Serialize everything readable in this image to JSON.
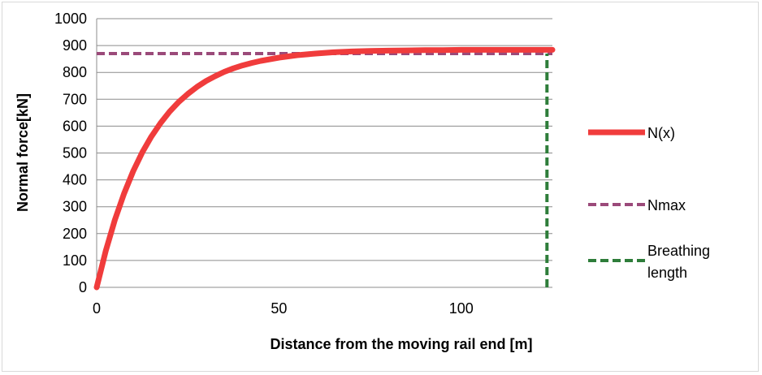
{
  "chart_data": {
    "type": "line",
    "title": "",
    "xlabel": "Distance from the moving rail end  [m]",
    "ylabel": "Normal force[kN]",
    "xlim": [
      0,
      125
    ],
    "ylim": [
      0,
      1000
    ],
    "xticks": [
      0,
      50,
      100
    ],
    "yticks": [
      0,
      100,
      200,
      300,
      400,
      500,
      600,
      700,
      800,
      900,
      1000
    ],
    "grid": "horizontal",
    "legend_position": "right",
    "series": [
      {
        "name": "N(x)",
        "color": "#f03c3c",
        "style": "solid",
        "x": [
          0,
          2.5,
          5,
          7.5,
          10,
          12.5,
          15,
          17.5,
          20,
          22.5,
          25,
          27.5,
          30,
          32.5,
          35,
          37.5,
          40,
          42.5,
          45,
          47.5,
          50,
          55,
          60,
          65,
          70,
          75,
          80,
          85,
          90,
          95,
          100,
          105,
          110,
          115,
          120,
          125
        ],
        "y": [
          0,
          136,
          251,
          349,
          432,
          502,
          561,
          611,
          654,
          690,
          720,
          746,
          768,
          786,
          802,
          815,
          826,
          835,
          843,
          849,
          855,
          864,
          870,
          875,
          878,
          880,
          881,
          882,
          883,
          883,
          884,
          884,
          884,
          884,
          884,
          884
        ]
      },
      {
        "name": "Nmax",
        "color": "#9b4a7a",
        "style": "dashed",
        "x": [
          0,
          125
        ],
        "y": [
          870,
          870
        ]
      },
      {
        "name": "Breathing length",
        "color": "#2e7d3a",
        "style": "dashed",
        "x": [
          123.5,
          123.5
        ],
        "y": [
          0,
          870
        ]
      }
    ]
  },
  "legend": {
    "items": [
      {
        "label": "N(x)",
        "color": "#f03c3c",
        "style": "solid"
      },
      {
        "label": "Nmax",
        "color": "#9b4a7a",
        "style": "dashed"
      },
      {
        "label": "Breathing\nlength",
        "color": "#2e7d3a",
        "style": "dashed"
      }
    ]
  }
}
